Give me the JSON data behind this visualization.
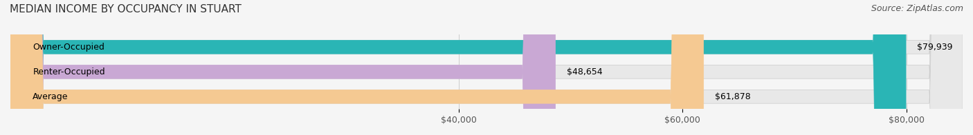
{
  "title": "MEDIAN INCOME BY OCCUPANCY IN STUART",
  "source": "Source: ZipAtlas.com",
  "categories": [
    "Owner-Occupied",
    "Renter-Occupied",
    "Average"
  ],
  "values": [
    79939,
    48654,
    61878
  ],
  "labels": [
    "$79,939",
    "$48,654",
    "$61,878"
  ],
  "bar_colors": [
    "#2ab5b5",
    "#c9a8d4",
    "#f5c992"
  ],
  "bar_edge_colors": [
    "#2ab5b5",
    "#c9a8d4",
    "#f5c992"
  ],
  "xmin": 0,
  "xmax": 85000,
  "xticks": [
    40000,
    60000,
    80000
  ],
  "xticklabels": [
    "$40,000",
    "$60,000",
    "$80,000"
  ],
  "background_color": "#f5f5f5",
  "bar_background_color": "#e8e8e8",
  "title_fontsize": 11,
  "source_fontsize": 9,
  "label_fontsize": 9,
  "bar_height": 0.55,
  "figsize": [
    14.06,
    1.96
  ],
  "dpi": 100
}
